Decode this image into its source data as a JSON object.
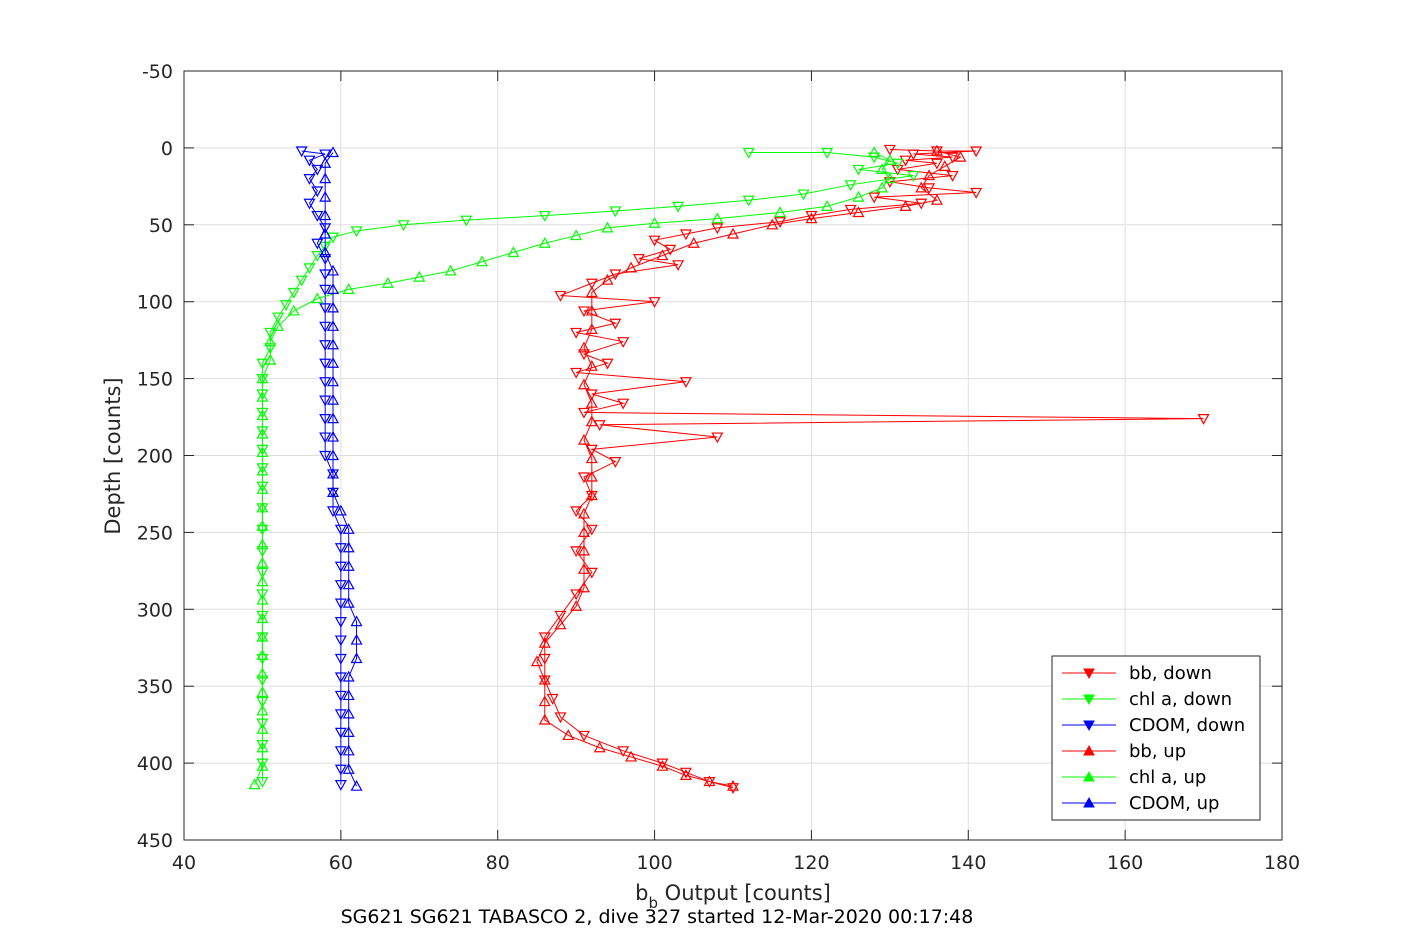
{
  "chart_data": {
    "type": "line",
    "xlabel_main": "b",
    "xlabel_sub": "b",
    "xlabel_rest": " Output [counts]",
    "ylabel": "Depth [counts]",
    "subtitle": "SG621 SG621 TABASCO 2, dive 327 started 12-Mar-2020 00:17:48",
    "xlim": [
      40,
      180
    ],
    "ylim": [
      -50,
      450
    ],
    "y_reversed": true,
    "grid": true,
    "legend_position": "bottom-right",
    "xticks": [
      "40",
      "60",
      "80",
      "100",
      "120",
      "140",
      "160",
      "180"
    ],
    "yticks": [
      "-50",
      "0",
      "50",
      "100",
      "150",
      "200",
      "250",
      "300",
      "350",
      "400",
      "450"
    ],
    "series": [
      {
        "name": "bb, down",
        "color": "#ff0000",
        "marker": "triangle-down",
        "points": [
          [
            130,
            1
          ],
          [
            136,
            2
          ],
          [
            141,
            2
          ],
          [
            133,
            4
          ],
          [
            138,
            6
          ],
          [
            132,
            8
          ],
          [
            136,
            10
          ],
          [
            131,
            14
          ],
          [
            138,
            18
          ],
          [
            130,
            22
          ],
          [
            135,
            26
          ],
          [
            141,
            29
          ],
          [
            128,
            32
          ],
          [
            134,
            36
          ],
          [
            125,
            40
          ],
          [
            120,
            44
          ],
          [
            116,
            48
          ],
          [
            108,
            52
          ],
          [
            104,
            56
          ],
          [
            100,
            60
          ],
          [
            102,
            66
          ],
          [
            98,
            72
          ],
          [
            103,
            76
          ],
          [
            95,
            82
          ],
          [
            92,
            88
          ],
          [
            88,
            96
          ],
          [
            100,
            100
          ],
          [
            91,
            106
          ],
          [
            95,
            114
          ],
          [
            90,
            120
          ],
          [
            96,
            126
          ],
          [
            91,
            134
          ],
          [
            94,
            140
          ],
          [
            90,
            146
          ],
          [
            104,
            152
          ],
          [
            92,
            160
          ],
          [
            96,
            166
          ],
          [
            91,
            172
          ],
          [
            170,
            176
          ],
          [
            93,
            180
          ],
          [
            108,
            188
          ],
          [
            92,
            196
          ],
          [
            95,
            204
          ],
          [
            91,
            214
          ],
          [
            92,
            226
          ],
          [
            90,
            236
          ],
          [
            92,
            248
          ],
          [
            90,
            262
          ],
          [
            92,
            276
          ],
          [
            90,
            290
          ],
          [
            88,
            304
          ],
          [
            86,
            318
          ],
          [
            86,
            332
          ],
          [
            86,
            346
          ],
          [
            87,
            358
          ],
          [
            88,
            370
          ],
          [
            91,
            382
          ],
          [
            96,
            392
          ],
          [
            101,
            400
          ],
          [
            104,
            406
          ],
          [
            107,
            412
          ],
          [
            110,
            416
          ]
        ]
      },
      {
        "name": "chl a, down",
        "color": "#00ff00",
        "marker": "triangle-down",
        "points": [
          [
            112,
            3
          ],
          [
            122,
            3
          ],
          [
            128,
            6
          ],
          [
            131,
            10
          ],
          [
            126,
            14
          ],
          [
            133,
            18
          ],
          [
            125,
            24
          ],
          [
            119,
            30
          ],
          [
            112,
            34
          ],
          [
            103,
            38
          ],
          [
            95,
            41
          ],
          [
            86,
            44
          ],
          [
            76,
            47
          ],
          [
            68,
            50
          ],
          [
            62,
            54
          ],
          [
            59,
            58
          ],
          [
            58,
            64
          ],
          [
            57,
            70
          ],
          [
            56,
            78
          ],
          [
            55,
            86
          ],
          [
            54,
            94
          ],
          [
            53,
            102
          ],
          [
            52,
            110
          ],
          [
            51,
            120
          ],
          [
            51,
            130
          ],
          [
            50,
            140
          ],
          [
            50,
            150
          ],
          [
            50,
            160
          ],
          [
            50,
            172
          ],
          [
            50,
            184
          ],
          [
            50,
            196
          ],
          [
            50,
            208
          ],
          [
            50,
            220
          ],
          [
            50,
            234
          ],
          [
            50,
            248
          ],
          [
            50,
            262
          ],
          [
            50,
            276
          ],
          [
            50,
            290
          ],
          [
            50,
            304
          ],
          [
            50,
            318
          ],
          [
            50,
            332
          ],
          [
            50,
            346
          ],
          [
            50,
            360
          ],
          [
            50,
            374
          ],
          [
            50,
            388
          ],
          [
            50,
            400
          ],
          [
            50,
            412
          ]
        ]
      },
      {
        "name": "CDOM, down",
        "color": "#0000ff",
        "marker": "triangle-down",
        "points": [
          [
            55,
            2
          ],
          [
            58,
            4
          ],
          [
            56,
            8
          ],
          [
            57,
            14
          ],
          [
            56,
            20
          ],
          [
            57,
            28
          ],
          [
            56,
            36
          ],
          [
            57,
            44
          ],
          [
            58,
            52
          ],
          [
            57,
            62
          ],
          [
            58,
            72
          ],
          [
            58,
            82
          ],
          [
            58,
            92
          ],
          [
            58,
            104
          ],
          [
            58,
            116
          ],
          [
            58,
            128
          ],
          [
            58,
            140
          ],
          [
            58,
            152
          ],
          [
            58,
            164
          ],
          [
            58,
            176
          ],
          [
            58,
            188
          ],
          [
            58,
            200
          ],
          [
            59,
            212
          ],
          [
            59,
            224
          ],
          [
            59,
            236
          ],
          [
            60,
            248
          ],
          [
            60,
            260
          ],
          [
            60,
            272
          ],
          [
            60,
            284
          ],
          [
            60,
            296
          ],
          [
            60,
            308
          ],
          [
            60,
            320
          ],
          [
            60,
            332
          ],
          [
            60,
            344
          ],
          [
            60,
            356
          ],
          [
            60,
            368
          ],
          [
            60,
            380
          ],
          [
            60,
            392
          ],
          [
            60,
            404
          ],
          [
            60,
            414
          ]
        ]
      },
      {
        "name": "bb, up",
        "color": "#ff0000",
        "marker": "triangle-up",
        "points": [
          [
            110,
            415
          ],
          [
            107,
            412
          ],
          [
            104,
            408
          ],
          [
            101,
            402
          ],
          [
            97,
            396
          ],
          [
            93,
            390
          ],
          [
            89,
            382
          ],
          [
            86,
            372
          ],
          [
            86,
            360
          ],
          [
            86,
            346
          ],
          [
            85,
            334
          ],
          [
            86,
            322
          ],
          [
            88,
            310
          ],
          [
            90,
            298
          ],
          [
            91,
            286
          ],
          [
            91,
            274
          ],
          [
            91,
            262
          ],
          [
            91,
            250
          ],
          [
            91,
            238
          ],
          [
            92,
            226
          ],
          [
            92,
            214
          ],
          [
            92,
            202
          ],
          [
            91,
            190
          ],
          [
            92,
            178
          ],
          [
            92,
            166
          ],
          [
            91,
            154
          ],
          [
            92,
            142
          ],
          [
            91,
            130
          ],
          [
            92,
            118
          ],
          [
            92,
            106
          ],
          [
            92,
            94
          ],
          [
            94,
            86
          ],
          [
            97,
            78
          ],
          [
            101,
            70
          ],
          [
            105,
            62
          ],
          [
            110,
            56
          ],
          [
            115,
            50
          ],
          [
            120,
            46
          ],
          [
            126,
            42
          ],
          [
            132,
            38
          ],
          [
            136,
            34
          ],
          [
            134,
            26
          ],
          [
            135,
            18
          ],
          [
            137,
            12
          ],
          [
            139,
            6
          ],
          [
            136,
            2
          ]
        ]
      },
      {
        "name": "chl a, up",
        "color": "#00ff00",
        "marker": "triangle-up",
        "points": [
          [
            49,
            414
          ],
          [
            50,
            402
          ],
          [
            50,
            390
          ],
          [
            50,
            378
          ],
          [
            50,
            366
          ],
          [
            50,
            354
          ],
          [
            50,
            342
          ],
          [
            50,
            330
          ],
          [
            50,
            318
          ],
          [
            50,
            306
          ],
          [
            50,
            294
          ],
          [
            50,
            282
          ],
          [
            50,
            270
          ],
          [
            50,
            258
          ],
          [
            50,
            246
          ],
          [
            50,
            234
          ],
          [
            50,
            222
          ],
          [
            50,
            210
          ],
          [
            50,
            198
          ],
          [
            50,
            186
          ],
          [
            50,
            174
          ],
          [
            50,
            162
          ],
          [
            50,
            150
          ],
          [
            51,
            138
          ],
          [
            51,
            126
          ],
          [
            52,
            116
          ],
          [
            54,
            106
          ],
          [
            57,
            98
          ],
          [
            61,
            92
          ],
          [
            66,
            88
          ],
          [
            70,
            84
          ],
          [
            74,
            80
          ],
          [
            78,
            74
          ],
          [
            82,
            68
          ],
          [
            86,
            62
          ],
          [
            90,
            57
          ],
          [
            94,
            52
          ],
          [
            100,
            49
          ],
          [
            108,
            46
          ],
          [
            116,
            42
          ],
          [
            122,
            38
          ],
          [
            126,
            32
          ],
          [
            129,
            26
          ],
          [
            130,
            20
          ],
          [
            129,
            14
          ],
          [
            130,
            8
          ],
          [
            128,
            3
          ]
        ]
      },
      {
        "name": "CDOM, up",
        "color": "#0000ff",
        "marker": "triangle-up",
        "points": [
          [
            62,
            415
          ],
          [
            61,
            404
          ],
          [
            61,
            392
          ],
          [
            61,
            380
          ],
          [
            61,
            368
          ],
          [
            61,
            356
          ],
          [
            61,
            344
          ],
          [
            62,
            332
          ],
          [
            62,
            320
          ],
          [
            62,
            308
          ],
          [
            61,
            296
          ],
          [
            61,
            284
          ],
          [
            61,
            272
          ],
          [
            61,
            260
          ],
          [
            61,
            248
          ],
          [
            60,
            236
          ],
          [
            59,
            224
          ],
          [
            59,
            212
          ],
          [
            59,
            200
          ],
          [
            59,
            188
          ],
          [
            59,
            176
          ],
          [
            59,
            164
          ],
          [
            59,
            152
          ],
          [
            59,
            140
          ],
          [
            59,
            128
          ],
          [
            59,
            116
          ],
          [
            59,
            104
          ],
          [
            59,
            92
          ],
          [
            59,
            80
          ],
          [
            58,
            68
          ],
          [
            58,
            56
          ],
          [
            58,
            44
          ],
          [
            58,
            32
          ],
          [
            58,
            20
          ],
          [
            58,
            10
          ],
          [
            59,
            3
          ]
        ]
      }
    ]
  }
}
